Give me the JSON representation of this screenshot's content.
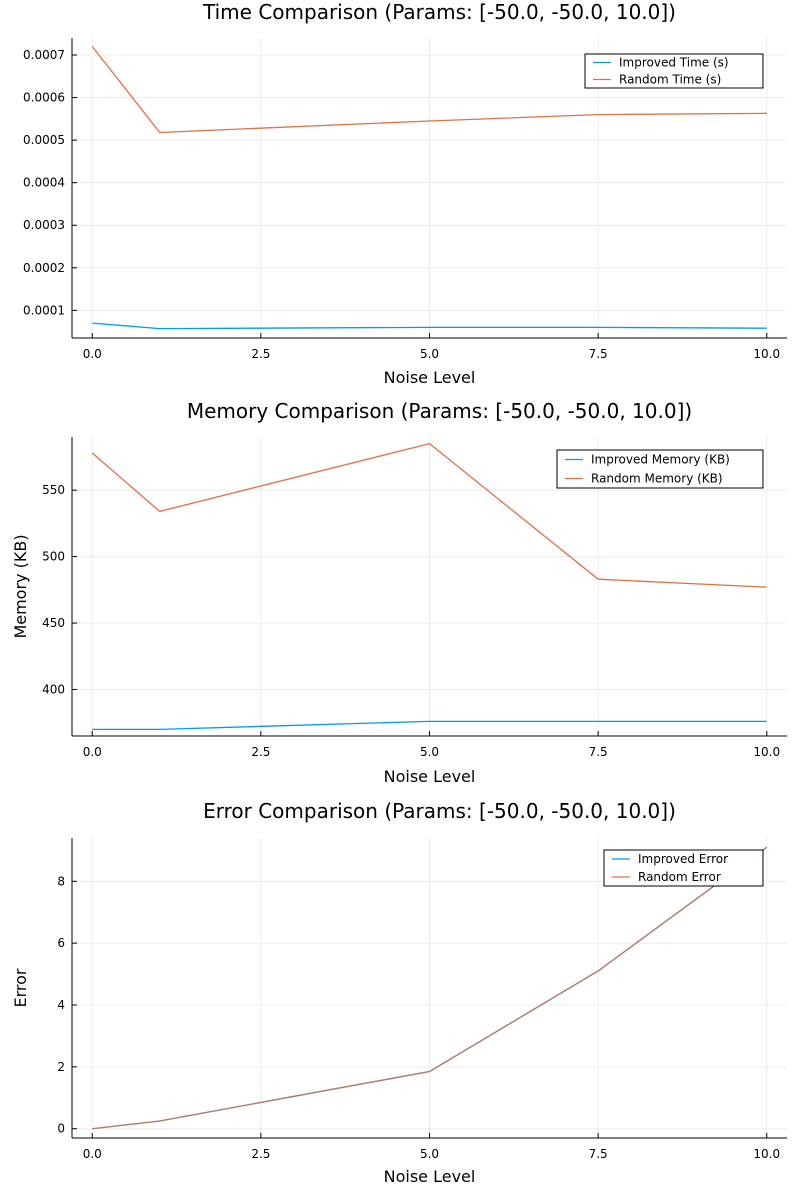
{
  "chart_data": [
    {
      "type": "line",
      "title": "Time Comparison (Params: [-50.0, -50.0, 10.0])",
      "xlabel": "Noise Level",
      "ylabel": "",
      "xlim": [
        -0.3,
        10.3
      ],
      "ylim": [
        3.5e-05,
        0.00074
      ],
      "x_ticks": [
        0.0,
        2.5,
        5.0,
        7.5,
        10.0
      ],
      "x_tick_labels": [
        "0.0",
        "2.5",
        "5.0",
        "7.5",
        "10.0"
      ],
      "y_ticks": [
        0.0001,
        0.0002,
        0.0003,
        0.0004,
        0.0005,
        0.0006,
        0.0007
      ],
      "y_tick_labels": [
        "0.0001",
        "0.0002",
        "0.0003",
        "0.0004",
        "0.0005",
        "0.0006",
        "0.0007"
      ],
      "grid": true,
      "legend_position": "top-right",
      "series": [
        {
          "name": "Improved Time (s)",
          "color": "#009AFA",
          "x": [
            0,
            1,
            5,
            7.5,
            10
          ],
          "y": [
            7e-05,
            5.7e-05,
            6e-05,
            6e-05,
            5.8e-05
          ]
        },
        {
          "name": "Random Time (s)",
          "color": "#E36F47",
          "x": [
            0,
            1,
            5,
            7.5,
            10
          ],
          "y": [
            0.00072,
            0.000518,
            0.000545,
            0.00056,
            0.000563
          ]
        }
      ]
    },
    {
      "type": "line",
      "title": "Memory Comparison (Params: [-50.0, -50.0, 10.0])",
      "xlabel": "Noise Level",
      "ylabel": "Memory (KB)",
      "xlim": [
        -0.3,
        10.3
      ],
      "ylim": [
        365,
        590
      ],
      "x_ticks": [
        0.0,
        2.5,
        5.0,
        7.5,
        10.0
      ],
      "x_tick_labels": [
        "0.0",
        "2.5",
        "5.0",
        "7.5",
        "10.0"
      ],
      "y_ticks": [
        400,
        450,
        500,
        550
      ],
      "y_tick_labels": [
        "400",
        "450",
        "500",
        "550"
      ],
      "grid": true,
      "legend_position": "top-right",
      "series": [
        {
          "name": "Improved Memory (KB)",
          "color": "#009AFA",
          "x": [
            0,
            1,
            5,
            7.5,
            10
          ],
          "y": [
            370,
            370,
            376,
            376,
            376
          ]
        },
        {
          "name": "Random Memory (KB)",
          "color": "#E36F47",
          "x": [
            0,
            1,
            5,
            7.5,
            10
          ],
          "y": [
            578,
            534,
            585,
            483,
            477
          ]
        }
      ]
    },
    {
      "type": "line",
      "title": "Error Comparison (Params: [-50.0, -50.0, 10.0])",
      "xlabel": "Noise Level",
      "ylabel": "Error",
      "xlim": [
        -0.3,
        10.3
      ],
      "ylim": [
        -0.3,
        9.4
      ],
      "x_ticks": [
        0.0,
        2.5,
        5.0,
        7.5,
        10.0
      ],
      "x_tick_labels": [
        "0.0",
        "2.5",
        "5.0",
        "7.5",
        "10.0"
      ],
      "y_ticks": [
        0,
        2,
        4,
        6,
        8
      ],
      "y_tick_labels": [
        "0",
        "2",
        "4",
        "6",
        "8"
      ],
      "grid": true,
      "legend_position": "top-right",
      "series": [
        {
          "name": "Improved Error",
          "color": "#009AFA",
          "x": [
            0,
            1,
            5,
            7.5,
            10
          ],
          "y": [
            0,
            0.25,
            1.85,
            5.1,
            9.1
          ]
        },
        {
          "name": "Random Error",
          "color": "#E36F47",
          "x": [
            0,
            1,
            5,
            7.5,
            10
          ],
          "y": [
            0,
            0.25,
            1.85,
            5.1,
            9.1
          ]
        }
      ]
    }
  ]
}
